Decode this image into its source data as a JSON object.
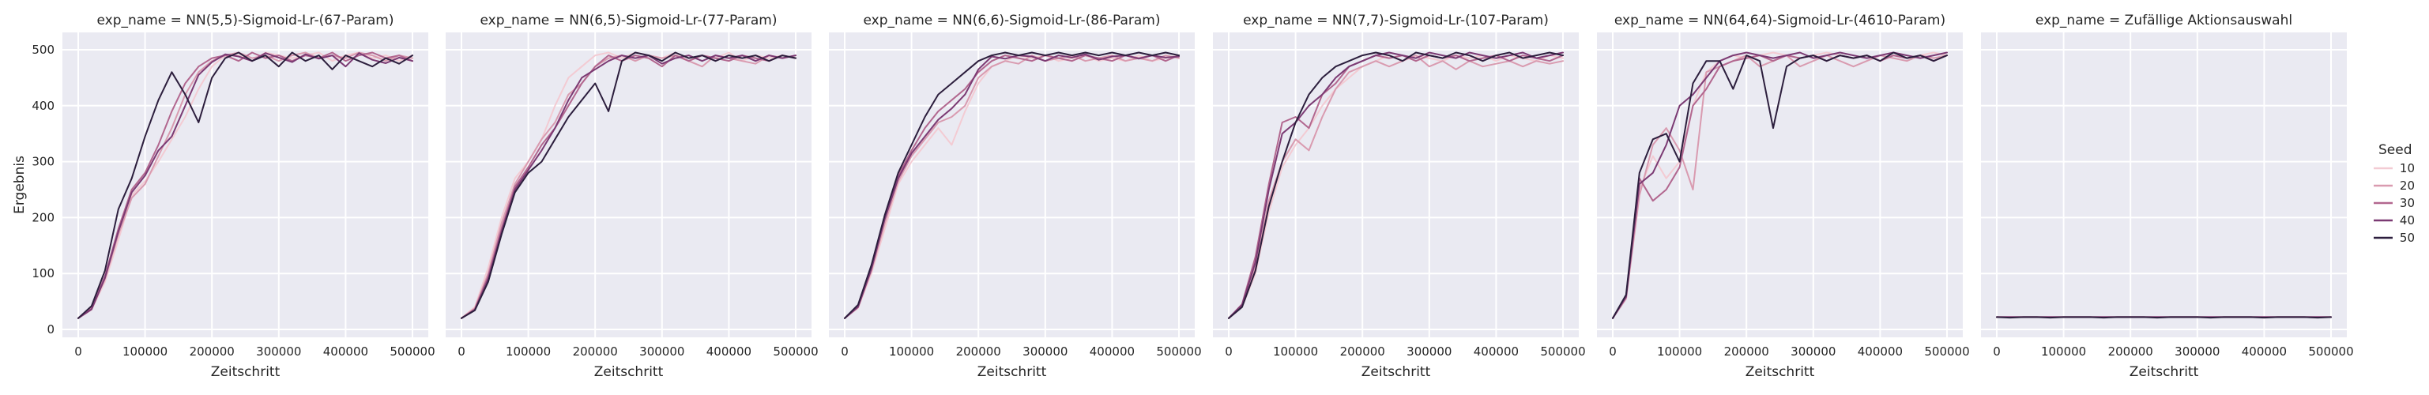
{
  "chart_data": {
    "type": "line",
    "xlabel": "Zeitschritt",
    "ylabel": "Ergebnis",
    "xlim": [
      0,
      500000
    ],
    "ylim": [
      0,
      500
    ],
    "grid": true,
    "xticks": [
      0,
      100000,
      200000,
      300000,
      400000,
      500000
    ],
    "yticks": [
      0,
      100,
      200,
      300,
      400,
      500
    ],
    "legend": {
      "title": "Seed",
      "placement": "right",
      "entries": [
        {
          "label": "10",
          "color": "#f3cbd3"
        },
        {
          "label": "20",
          "color": "#d99bb0"
        },
        {
          "label": "30",
          "color": "#b2678f"
        },
        {
          "label": "40",
          "color": "#7b3a73"
        },
        {
          "label": "50",
          "color": "#2c1e3d"
        }
      ]
    },
    "x": [
      0,
      20000,
      40000,
      60000,
      80000,
      100000,
      120000,
      140000,
      160000,
      180000,
      200000,
      220000,
      240000,
      260000,
      280000,
      300000,
      320000,
      340000,
      360000,
      380000,
      400000,
      420000,
      440000,
      460000,
      480000,
      500000
    ],
    "panels": [
      {
        "title": "exp_name = NN(5,5)-Sigmoid-Lr-(67-Param)",
        "series": [
          {
            "name": "10",
            "values": [
              20,
              35,
              85,
              160,
              240,
              265,
              300,
              340,
              380,
              430,
              470,
              490,
              490,
              480,
              495,
              490,
              485,
              490,
              495,
              480,
              490,
              495,
              485,
              490,
              480,
              490
            ]
          },
          {
            "name": "20",
            "values": [
              20,
              38,
              90,
              170,
              235,
              260,
              310,
              360,
              420,
              460,
              480,
              490,
              495,
              485,
              490,
              480,
              490,
              495,
              485,
              490,
              485,
              495,
              490,
              480,
              490,
              485
            ]
          },
          {
            "name": "30",
            "values": [
              20,
              40,
              95,
              180,
              250,
              280,
              330,
              390,
              440,
              470,
              485,
              490,
              480,
              495,
              485,
              490,
              480,
              490,
              485,
              495,
              480,
              490,
              495,
              485,
              490,
              480
            ]
          },
          {
            "name": "40",
            "values": [
              20,
              36,
              92,
              175,
              245,
              275,
              320,
              345,
              400,
              455,
              478,
              492,
              488,
              480,
              494,
              486,
              478,
              492,
              484,
              490,
              470,
              494,
              482,
              476,
              486,
              480
            ]
          },
          {
            "name": "50",
            "values": [
              20,
              42,
              105,
              215,
              270,
              345,
              410,
              460,
              420,
              370,
              450,
              485,
              495,
              480,
              490,
              470,
              495,
              480,
              490,
              465,
              490,
              480,
              470,
              485,
              475,
              490
            ]
          }
        ]
      },
      {
        "title": "exp_name = NN(6,5)-Sigmoid-Lr-(77-Param)",
        "series": [
          {
            "name": "10",
            "values": [
              20,
              40,
              110,
              200,
              270,
              300,
              340,
              400,
              450,
              470,
              490,
              495,
              485,
              495,
              490,
              485,
              495,
              480,
              490,
              485,
              495,
              480,
              490,
              485,
              490,
              485
            ]
          },
          {
            "name": "20",
            "values": [
              20,
              38,
              100,
              190,
              260,
              300,
              340,
              370,
              420,
              440,
              470,
              485,
              490,
              480,
              490,
              485,
              490,
              480,
              470,
              490,
              485,
              480,
              475,
              490,
              485,
              490
            ]
          },
          {
            "name": "30",
            "values": [
              20,
              36,
              95,
              180,
              255,
              290,
              330,
              360,
              400,
              440,
              470,
              490,
              480,
              490,
              485,
              470,
              490,
              480,
              490,
              485,
              480,
              490,
              485,
              480,
              490,
              485
            ]
          },
          {
            "name": "40",
            "values": [
              20,
              35,
              90,
              175,
              250,
              285,
              320,
              360,
              410,
              450,
              465,
              480,
              490,
              485,
              490,
              475,
              485,
              490,
              480,
              490,
              485,
              490,
              480,
              490,
              485,
              490
            ]
          },
          {
            "name": "50",
            "values": [
              20,
              34,
              85,
              170,
              245,
              280,
              300,
              340,
              380,
              410,
              440,
              390,
              480,
              495,
              490,
              480,
              495,
              485,
              490,
              480,
              490,
              485,
              490,
              480,
              490,
              485
            ]
          }
        ]
      },
      {
        "title": "exp_name = NN(6,6)-Sigmoid-Lr-(86-Param)",
        "series": [
          {
            "name": "10",
            "values": [
              20,
              38,
              100,
              180,
              260,
              300,
              330,
              360,
              330,
              390,
              440,
              470,
              480,
              490,
              485,
              490,
              480,
              485,
              490,
              480,
              485,
              480,
              490,
              480,
              485,
              490
            ]
          },
          {
            "name": "20",
            "values": [
              20,
              40,
              105,
              190,
              265,
              310,
              340,
              370,
              380,
              400,
              450,
              470,
              480,
              475,
              490,
              480,
              485,
              490,
              480,
              485,
              490,
              480,
              485,
              480,
              490,
              485
            ]
          },
          {
            "name": "30",
            "values": [
              20,
              42,
              110,
              200,
              275,
              320,
              360,
              390,
              410,
              430,
              460,
              480,
              490,
              485,
              480,
              490,
              485,
              480,
              490,
              485,
              480,
              490,
              485,
              490,
              480,
              490
            ]
          },
          {
            "name": "40",
            "values": [
              20,
              40,
              108,
              198,
              270,
              315,
              345,
              375,
              395,
              420,
              465,
              488,
              484,
              490,
              488,
              480,
              490,
              486,
              492,
              482,
              488,
              490,
              484,
              490,
              486,
              488
            ]
          },
          {
            "name": "50",
            "values": [
              20,
              44,
              115,
              205,
              280,
              330,
              380,
              420,
              440,
              460,
              480,
              490,
              495,
              490,
              495,
              490,
              495,
              490,
              495,
              490,
              495,
              490,
              495,
              490,
              495,
              490
            ]
          }
        ]
      },
      {
        "title": "exp_name = NN(7,7)-Sigmoid-Lr-(107-Param)",
        "series": [
          {
            "name": "10",
            "values": [
              20,
              40,
              100,
              210,
              290,
              330,
              360,
              400,
              430,
              450,
              470,
              480,
              490,
              480,
              490,
              485,
              480,
              490,
              485,
              490,
              480,
              490,
              485,
              480,
              490,
              485
            ]
          },
          {
            "name": "20",
            "values": [
              20,
              42,
              110,
              230,
              300,
              340,
              320,
              380,
              430,
              460,
              470,
              480,
              470,
              480,
              490,
              470,
              480,
              465,
              480,
              470,
              475,
              480,
              470,
              480,
              475,
              480
            ]
          },
          {
            "name": "30",
            "values": [
              20,
              45,
              130,
              260,
              370,
              380,
              360,
              420,
              440,
              470,
              480,
              490,
              485,
              490,
              480,
              490,
              485,
              490,
              480,
              485,
              490,
              480,
              490,
              485,
              480,
              490
            ]
          },
          {
            "name": "40",
            "values": [
              20,
              44,
              120,
              250,
              350,
              370,
              400,
              420,
              450,
              470,
              480,
              490,
              495,
              490,
              485,
              495,
              490,
              485,
              495,
              490,
              485,
              490,
              495,
              485,
              490,
              495
            ]
          },
          {
            "name": "50",
            "values": [
              20,
              40,
              105,
              220,
              300,
              370,
              420,
              450,
              470,
              480,
              490,
              495,
              490,
              480,
              495,
              490,
              485,
              495,
              490,
              480,
              490,
              495,
              485,
              490,
              495,
              490
            ]
          }
        ]
      },
      {
        "title": "exp_name = NN(64,64)-Sigmoid-Lr-(4610-Param)",
        "series": [
          {
            "name": "10",
            "values": [
              20,
              60,
              250,
              310,
              270,
              300,
              400,
              460,
              480,
              490,
              485,
              490,
              495,
              490,
              485,
              490,
              495,
              490,
              485,
              490,
              480,
              490,
              485,
              490,
              495,
              490
            ]
          },
          {
            "name": "20",
            "values": [
              20,
              55,
              240,
              330,
              360,
              320,
              250,
              460,
              470,
              480,
              490,
              470,
              480,
              490,
              470,
              480,
              490,
              480,
              470,
              480,
              490,
              485,
              480,
              490,
              485,
              490
            ]
          },
          {
            "name": "30",
            "values": [
              20,
              60,
              270,
              230,
              250,
              290,
              400,
              430,
              470,
              480,
              485,
              490,
              480,
              490,
              485,
              490,
              480,
              490,
              485,
              490,
              480,
              490,
              485,
              490,
              480,
              490
            ]
          },
          {
            "name": "40",
            "values": [
              20,
              58,
              260,
              280,
              330,
              400,
              420,
              450,
              480,
              490,
              495,
              490,
              485,
              490,
              495,
              485,
              490,
              495,
              490,
              485,
              490,
              495,
              490,
              485,
              490,
              495
            ]
          },
          {
            "name": "50",
            "values": [
              20,
              62,
              280,
              340,
              350,
              300,
              440,
              480,
              480,
              430,
              490,
              480,
              360,
              470,
              485,
              490,
              480,
              490,
              485,
              490,
              480,
              495,
              485,
              490,
              480,
              490
            ]
          }
        ]
      },
      {
        "title": "exp_name = Zufällige Aktionsauswahl",
        "series": [
          {
            "name": "10",
            "values": [
              22,
              22,
              22,
              22,
              22,
              22,
              22,
              22,
              22,
              22,
              22,
              22,
              22,
              22,
              22,
              22,
              22,
              22,
              22,
              22,
              22,
              22,
              22,
              22,
              22,
              22
            ]
          },
          {
            "name": "20",
            "values": [
              22,
              22,
              22,
              22,
              22,
              22,
              22,
              22,
              22,
              22,
              22,
              22,
              22,
              22,
              22,
              22,
              22,
              22,
              22,
              22,
              22,
              22,
              22,
              22,
              22,
              22
            ]
          },
          {
            "name": "30",
            "values": [
              22,
              22,
              22,
              22,
              22,
              22,
              22,
              22,
              22,
              22,
              22,
              22,
              22,
              22,
              22,
              22,
              22,
              22,
              22,
              22,
              22,
              22,
              22,
              22,
              22,
              22
            ]
          },
          {
            "name": "40",
            "values": [
              22,
              22,
              22,
              22,
              22,
              22,
              22,
              22,
              22,
              22,
              22,
              22,
              22,
              22,
              22,
              22,
              22,
              22,
              22,
              22,
              22,
              22,
              22,
              22,
              22,
              22
            ]
          },
          {
            "name": "50",
            "values": [
              22,
              21,
              22,
              22,
              21,
              22,
              22,
              22,
              21,
              22,
              22,
              22,
              21,
              22,
              22,
              22,
              21,
              22,
              22,
              22,
              21,
              22,
              22,
              22,
              21,
              22
            ]
          }
        ]
      }
    ]
  }
}
